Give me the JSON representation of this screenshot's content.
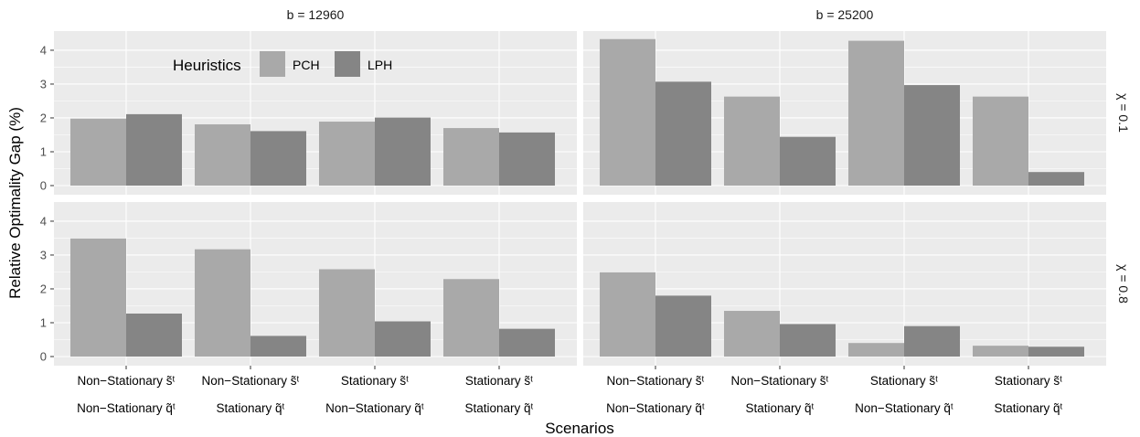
{
  "chart_data": {
    "type": "bar",
    "title": "",
    "xlabel": "Scenarios",
    "ylabel": "Relative Optimality Gap (%)",
    "ylim": [
      0,
      4.5
    ],
    "y_ticks": [
      "0",
      "1",
      "2",
      "3",
      "4"
    ],
    "grid": true,
    "legend": {
      "title": "Heuristics",
      "position": "top-left inside",
      "entries": [
        "PCH",
        "LPH"
      ]
    },
    "column_labels": [
      "b = 12960",
      "b = 25200"
    ],
    "row_labels": [
      "χ = 0.1",
      "χ = 0.8"
    ],
    "categories": [
      [
        "Non−Stationary s̃ᵗ",
        "Non−Stationary q̃ᵗ"
      ],
      [
        "Non−Stationary s̃ᵗ",
        "Stationary q̃ᵗ"
      ],
      [
        "Stationary s̃ᵗ",
        "Non−Stationary q̃ᵗ"
      ],
      [
        "Stationary s̃ᵗ",
        "Stationary q̃ᵗ"
      ]
    ],
    "series_colors": {
      "PCH": "#a9a9a9",
      "LPH": "#858585"
    },
    "panels": [
      {
        "row": 0,
        "col": 0,
        "series": [
          {
            "name": "PCH",
            "values": [
              1.98,
              1.81,
              1.89,
              1.7
            ]
          },
          {
            "name": "LPH",
            "values": [
              2.11,
              1.61,
              2.01,
              1.57
            ]
          }
        ]
      },
      {
        "row": 0,
        "col": 1,
        "series": [
          {
            "name": "PCH",
            "values": [
              4.33,
              2.63,
              4.28,
              2.63
            ]
          },
          {
            "name": "LPH",
            "values": [
              3.07,
              1.44,
              2.97,
              0.4
            ]
          }
        ]
      },
      {
        "row": 1,
        "col": 0,
        "series": [
          {
            "name": "PCH",
            "values": [
              3.49,
              3.17,
              2.58,
              2.29
            ]
          },
          {
            "name": "LPH",
            "values": [
              1.27,
              0.61,
              1.04,
              0.82
            ]
          }
        ]
      },
      {
        "row": 1,
        "col": 1,
        "series": [
          {
            "name": "PCH",
            "values": [
              2.49,
              1.35,
              0.4,
              0.32
            ]
          },
          {
            "name": "LPH",
            "values": [
              1.8,
              0.96,
              0.9,
              0.29
            ]
          }
        ]
      }
    ]
  }
}
